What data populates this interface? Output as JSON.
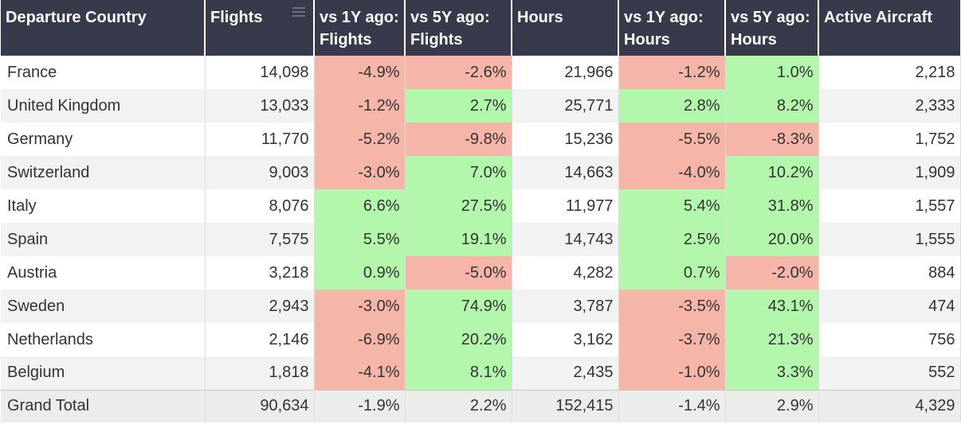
{
  "chart_data": {
    "type": "table",
    "columns": [
      "Departure Country",
      "Flights",
      "vs 1Y ago: Flights",
      "vs 5Y ago: Flights",
      "Hours",
      "vs 1Y ago: Hours",
      "vs 5Y ago: Hours",
      "Active Aircraft"
    ],
    "rows": [
      {
        "country": "France",
        "flights": "14,098",
        "yoy_flights": "-4.9%",
        "y5_flights": "-2.6%",
        "hours": "21,966",
        "yoy_hours": "-1.2%",
        "y5_hours": "1.0%",
        "aircraft": "2,218"
      },
      {
        "country": "United Kingdom",
        "flights": "13,033",
        "yoy_flights": "-1.2%",
        "y5_flights": "2.7%",
        "hours": "25,771",
        "yoy_hours": "2.8%",
        "y5_hours": "8.2%",
        "aircraft": "2,333"
      },
      {
        "country": "Germany",
        "flights": "11,770",
        "yoy_flights": "-5.2%",
        "y5_flights": "-9.8%",
        "hours": "15,236",
        "yoy_hours": "-5.5%",
        "y5_hours": "-8.3%",
        "aircraft": "1,752"
      },
      {
        "country": "Switzerland",
        "flights": "9,003",
        "yoy_flights": "-3.0%",
        "y5_flights": "7.0%",
        "hours": "14,663",
        "yoy_hours": "-4.0%",
        "y5_hours": "10.2%",
        "aircraft": "1,909"
      },
      {
        "country": "Italy",
        "flights": "8,076",
        "yoy_flights": "6.6%",
        "y5_flights": "27.5%",
        "hours": "11,977",
        "yoy_hours": "5.4%",
        "y5_hours": "31.8%",
        "aircraft": "1,557"
      },
      {
        "country": "Spain",
        "flights": "7,575",
        "yoy_flights": "5.5%",
        "y5_flights": "19.1%",
        "hours": "14,743",
        "yoy_hours": "2.5%",
        "y5_hours": "20.0%",
        "aircraft": "1,555"
      },
      {
        "country": "Austria",
        "flights": "3,218",
        "yoy_flights": "0.9%",
        "y5_flights": "-5.0%",
        "hours": "4,282",
        "yoy_hours": "0.7%",
        "y5_hours": "-2.0%",
        "aircraft": "884"
      },
      {
        "country": "Sweden",
        "flights": "2,943",
        "yoy_flights": "-3.0%",
        "y5_flights": "74.9%",
        "hours": "3,787",
        "yoy_hours": "-3.5%",
        "y5_hours": "43.1%",
        "aircraft": "474"
      },
      {
        "country": "Netherlands",
        "flights": "2,146",
        "yoy_flights": "-6.9%",
        "y5_flights": "20.2%",
        "hours": "3,162",
        "yoy_hours": "-3.7%",
        "y5_hours": "21.3%",
        "aircraft": "756"
      },
      {
        "country": "Belgium",
        "flights": "1,818",
        "yoy_flights": "-4.1%",
        "y5_flights": "8.1%",
        "hours": "2,435",
        "yoy_hours": "-1.0%",
        "y5_hours": "3.3%",
        "aircraft": "552"
      }
    ],
    "total": {
      "country": "Grand Total",
      "flights": "90,634",
      "yoy_flights": "-1.9%",
      "y5_flights": "2.2%",
      "hours": "152,415",
      "yoy_hours": "-1.4%",
      "y5_hours": "2.9%",
      "aircraft": "4,329"
    },
    "colors": {
      "header_bg": "#373a4a",
      "negative": "#f5b5a8",
      "positive": "#b3f7ad"
    }
  },
  "icons": {
    "flights_header": "sort-icon"
  }
}
